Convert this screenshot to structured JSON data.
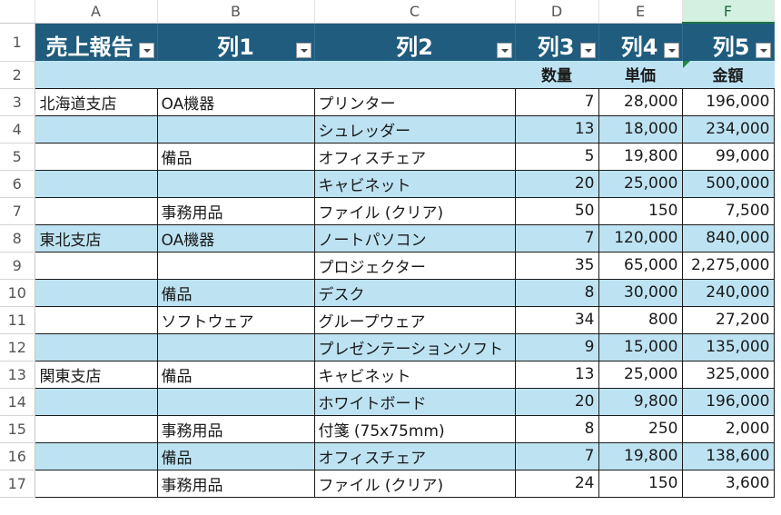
{
  "columns": [
    "A",
    "B",
    "C",
    "D",
    "E",
    "F"
  ],
  "selected_column": "F",
  "header_row": {
    "row_number": "1",
    "cells": [
      "売上報告",
      "列1",
      "列2",
      "列3",
      "列4",
      "列5"
    ]
  },
  "subheader_row": {
    "row_number": "2",
    "cells": [
      "",
      "",
      "",
      "数量",
      "単価",
      "金額"
    ]
  },
  "rows": [
    {
      "n": "3",
      "a": "北海道支店",
      "b": "OA機器",
      "c": "プリンター",
      "d": "7",
      "e": "28,000",
      "f": "196,000"
    },
    {
      "n": "4",
      "a": "",
      "b": "",
      "c": "シュレッダー",
      "d": "13",
      "e": "18,000",
      "f": "234,000"
    },
    {
      "n": "5",
      "a": "",
      "b": "備品",
      "c": "オフィスチェア",
      "d": "5",
      "e": "19,800",
      "f": "99,000"
    },
    {
      "n": "6",
      "a": "",
      "b": "",
      "c": "キャビネット",
      "d": "20",
      "e": "25,000",
      "f": "500,000"
    },
    {
      "n": "7",
      "a": "",
      "b": "事務用品",
      "c": "ファイル (クリア)",
      "d": "50",
      "e": "150",
      "f": "7,500"
    },
    {
      "n": "8",
      "a": "東北支店",
      "b": "OA機器",
      "c": "ノートパソコン",
      "d": "7",
      "e": "120,000",
      "f": "840,000"
    },
    {
      "n": "9",
      "a": "",
      "b": "",
      "c": "プロジェクター",
      "d": "35",
      "e": "65,000",
      "f": "2,275,000"
    },
    {
      "n": "10",
      "a": "",
      "b": "備品",
      "c": "デスク",
      "d": "8",
      "e": "30,000",
      "f": "240,000"
    },
    {
      "n": "11",
      "a": "",
      "b": "ソフトウェア",
      "c": "グループウェア",
      "d": "34",
      "e": "800",
      "f": "27,200"
    },
    {
      "n": "12",
      "a": "",
      "b": "",
      "c": "プレゼンテーションソフト",
      "d": "9",
      "e": "15,000",
      "f": "135,000"
    },
    {
      "n": "13",
      "a": "関東支店",
      "b": "備品",
      "c": "キャビネット",
      "d": "13",
      "e": "25,000",
      "f": "325,000"
    },
    {
      "n": "14",
      "a": "",
      "b": "",
      "c": "ホワイトボード",
      "d": "20",
      "e": "9,800",
      "f": "196,000"
    },
    {
      "n": "15",
      "a": "",
      "b": "事務用品",
      "c": "付箋 (75x75mm)",
      "d": "8",
      "e": "250",
      "f": "2,000"
    },
    {
      "n": "16",
      "a": "",
      "b": "備品",
      "c": "オフィスチェア",
      "d": "7",
      "e": "19,800",
      "f": "138,600"
    },
    {
      "n": "17",
      "a": "",
      "b": "事務用品",
      "c": "ファイル (クリア)",
      "d": "24",
      "e": "150",
      "f": "3,600"
    }
  ],
  "colors": {
    "header_fill": "#1f5c7e",
    "band_fill": "#bde3f2",
    "selected_column_fill": "#d3f0e0"
  }
}
